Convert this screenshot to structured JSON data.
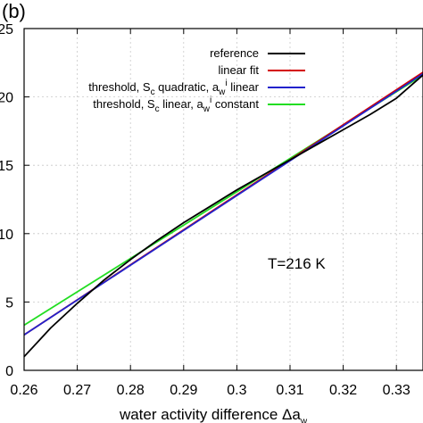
{
  "chart_data": {
    "type": "line",
    "panel_label": "(b)",
    "xlabel": "water activity difference Δa",
    "xlabel_subscript": "w",
    "ylabel": "",
    "xlim": [
      0.26,
      0.335
    ],
    "ylim": [
      0,
      25
    ],
    "xticks": [
      0.26,
      0.27,
      0.28,
      0.29,
      0.3,
      0.31,
      0.32,
      0.33
    ],
    "xtick_labels": [
      "0.26",
      "0.27",
      "0.28",
      "0.29",
      "0.3",
      "0.31",
      "0.32",
      "0.33"
    ],
    "yticks": [
      0,
      5,
      10,
      15,
      20,
      25
    ],
    "ytick_labels": [
      "0",
      "5",
      "10",
      "15",
      "20",
      "25"
    ],
    "grid": true,
    "legend_position": "top-right",
    "annotation": "T=216 K",
    "series": [
      {
        "name": "reference",
        "legend_parts": [
          {
            "t": "reference"
          }
        ],
        "color": "#000000",
        "x": [
          0.26,
          0.265,
          0.27,
          0.275,
          0.28,
          0.285,
          0.29,
          0.295,
          0.3,
          0.305,
          0.31,
          0.315,
          0.32,
          0.325,
          0.33,
          0.335
        ],
        "y": [
          1.0,
          3.1,
          4.9,
          6.6,
          8.1,
          9.5,
          10.8,
          12.0,
          13.2,
          14.3,
          15.4,
          16.5,
          17.6,
          18.7,
          19.9,
          21.6
        ]
      },
      {
        "name": "linear fit",
        "legend_parts": [
          {
            "t": "linear fit"
          }
        ],
        "color": "#d40000",
        "x": [
          0.26,
          0.335
        ],
        "y": [
          2.6,
          21.8
        ]
      },
      {
        "name": "threshold, Sc quadratic, aw^i linear",
        "legend_parts": [
          {
            "t": "threshold, S"
          },
          {
            "t": "c",
            "sub": true
          },
          {
            "t": " quadratic, a"
          },
          {
            "t": "w",
            "sub": true
          },
          {
            "t": "i",
            "sup": true
          },
          {
            "t": " linear"
          }
        ],
        "color": "#2222cc",
        "x": [
          0.26,
          0.335
        ],
        "y": [
          2.6,
          21.7
        ]
      },
      {
        "name": "threshold, Sc linear, aw^i constant",
        "legend_parts": [
          {
            "t": "threshold, S"
          },
          {
            "t": "c",
            "sub": true
          },
          {
            "t": " linear, a"
          },
          {
            "t": "w",
            "sub": true
          },
          {
            "t": "i",
            "sup": true
          },
          {
            "t": " constant"
          }
        ],
        "color": "#22dd22",
        "x": [
          0.26,
          0.335
        ],
        "y": [
          3.3,
          21.6
        ]
      }
    ]
  }
}
